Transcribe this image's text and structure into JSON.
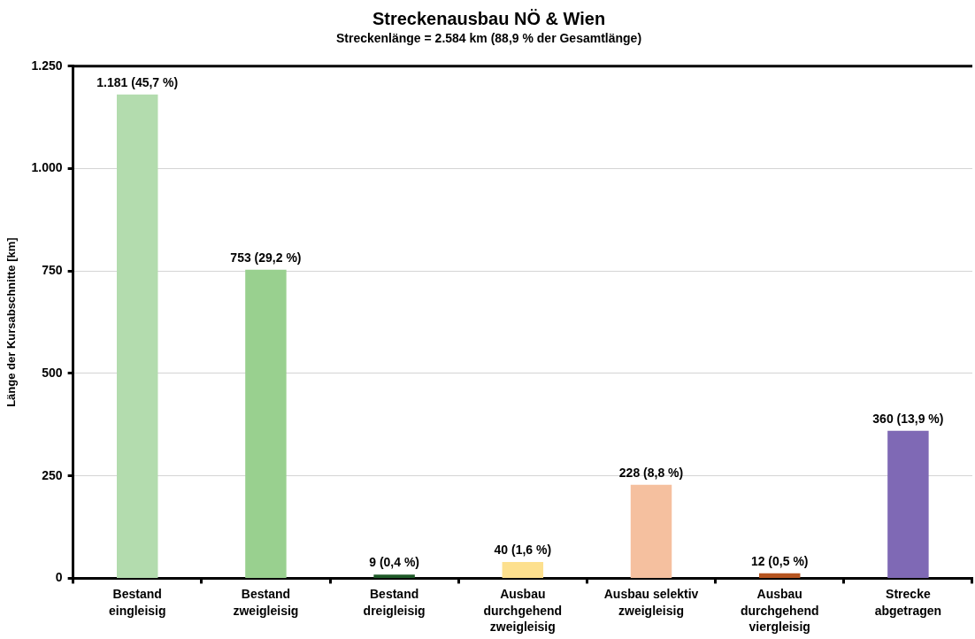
{
  "chart_data": {
    "type": "bar",
    "title": "Streckenausbau NÖ & Wien",
    "subtitle": "Streckenlänge = 2.584 km (88,9 % der Gesamtlänge)",
    "ylabel": "Länge der Kursabschnitte [km]",
    "categories": [
      "Bestand\neingleisig",
      "Bestand\nzweigleisig",
      "Bestand\ndreigleisig",
      "Ausbau\ndurchgehend\nzweigleisig",
      "Ausbau selektiv\nzweigleisig",
      "Ausbau\ndurchgehend\nviergleisig",
      "Strecke\nabgetragen"
    ],
    "values": [
      1181,
      753,
      9,
      40,
      228,
      12,
      360
    ],
    "colors": [
      "#b3dcae",
      "#99d08f",
      "#1e5a28",
      "#fde08e",
      "#f5c09f",
      "#b5541f",
      "#7f69b5"
    ],
    "value_labels": [
      "1.181 (45,7 %)",
      "753 (29,2 %)",
      "9 (0,4 %)",
      "40 (1,6 %)",
      "228 (8,8 %)",
      "12 (0,5 %)",
      "360 (13,9 %)"
    ],
    "ylim": [
      0,
      1250
    ],
    "yticks": [
      0,
      250,
      500,
      750,
      {
        "value": 1000,
        "label": "1.000"
      },
      {
        "value": 1250,
        "label": "1.250"
      }
    ],
    "grid": "y"
  }
}
